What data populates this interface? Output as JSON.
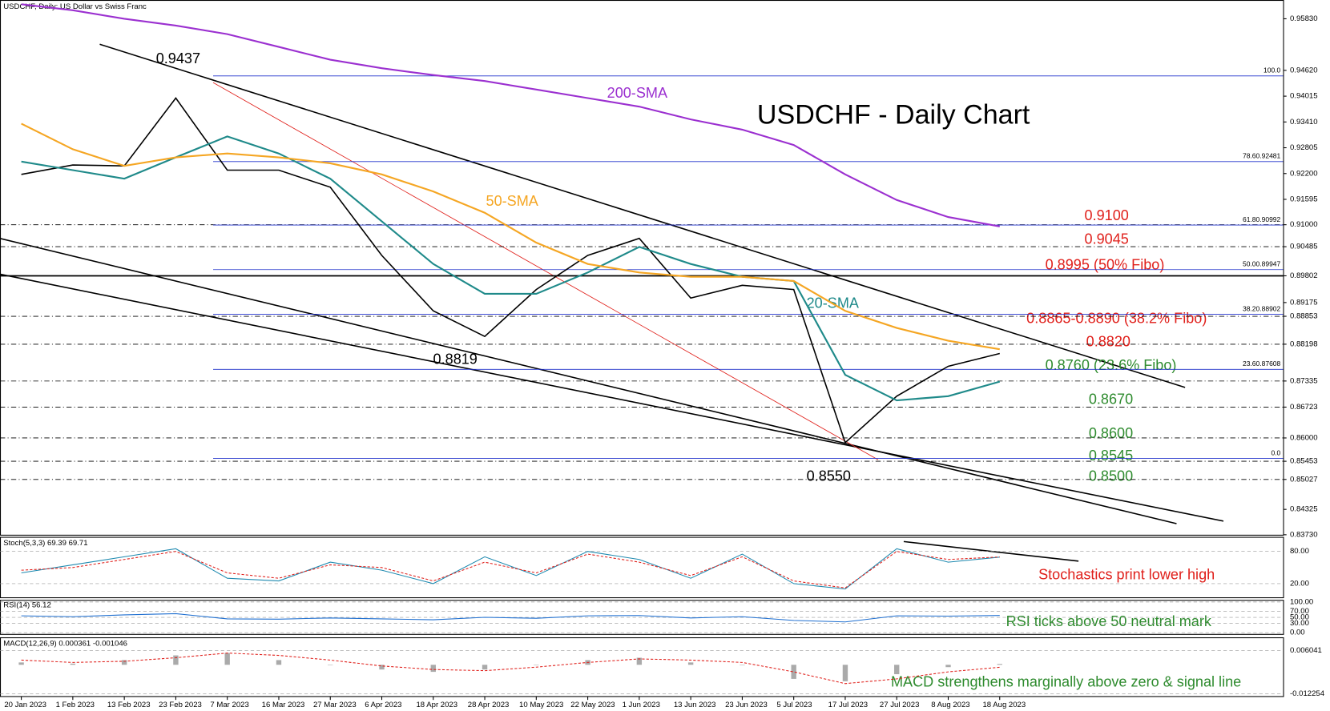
{
  "chart_data": {
    "type": "line",
    "header": "USDCHF, Daily:  US Dollar vs Swiss Franc",
    "title": "USDCHF - Daily Chart",
    "categories": [
      "20 Jan 2023",
      "1 Feb 2023",
      "13 Feb 2023",
      "23 Feb 2023",
      "7 Mar 2023",
      "16 Mar 2023",
      "27 Mar 2023",
      "6 Apr 2023",
      "18 Apr 2023",
      "28 Apr 2023",
      "10 May 2023",
      "22 May 2023",
      "1 Jun 2023",
      "13 Jun 2023",
      "23 Jun 2023",
      "5 Jul 2023",
      "17 Jul 2023",
      "27 Jul 2023",
      "8 Aug 2023",
      "18 Aug 2023"
    ],
    "series": [
      {
        "name": "Close",
        "color": "#000000",
        "values": [
          0.9218,
          0.924,
          0.9238,
          0.9397,
          0.9228,
          0.9228,
          0.9188,
          0.9028,
          0.8898,
          0.8838,
          0.8948,
          0.9028,
          0.9068,
          0.8928,
          0.8958,
          0.8948,
          0.8589,
          0.8698,
          0.8768,
          0.8798
        ]
      },
      {
        "name": "20-SMA",
        "color": "#1f8a8a",
        "values": [
          0.9248,
          0.9228,
          0.9208,
          0.9258,
          0.9307,
          0.9267,
          0.9208,
          0.9108,
          0.9008,
          0.8938,
          0.8938,
          0.8988,
          0.9048,
          0.9008,
          0.8978,
          0.8968,
          0.8748,
          0.8688,
          0.8698,
          0.8732
        ]
      },
      {
        "name": "50-SMA",
        "color": "#f5a623",
        "values": [
          0.9337,
          0.9277,
          0.9238,
          0.9258,
          0.9267,
          0.9258,
          0.9244,
          0.9218,
          0.9178,
          0.9128,
          0.9058,
          0.9008,
          0.8988,
          0.8978,
          0.8978,
          0.8968,
          0.8898,
          0.8858,
          0.8828,
          0.8808
        ]
      },
      {
        "name": "200-SMA",
        "color": "#9b30d0",
        "values": [
          0.9617,
          0.9603,
          0.9583,
          0.9567,
          0.9547,
          0.9517,
          0.9487,
          0.9467,
          0.9451,
          0.9437,
          0.9417,
          0.9397,
          0.9377,
          0.9347,
          0.9323,
          0.9287,
          0.9218,
          0.9158,
          0.9118,
          0.9096
        ]
      }
    ],
    "ylim": [
      0.8373,
      0.9627
    ],
    "yticks": [
      {
        "value": 0.9583,
        "label": "0.95830"
      },
      {
        "value": 0.9462,
        "label": "0.94620"
      },
      {
        "value": 0.94015,
        "label": "0.94015"
      },
      {
        "value": 0.9341,
        "label": "0.93410"
      },
      {
        "value": 0.92805,
        "label": "0.92805"
      },
      {
        "value": 0.922,
        "label": "0.92200"
      },
      {
        "value": 0.91595,
        "label": "0.91595"
      },
      {
        "value": 0.91,
        "label": "0.91000"
      },
      {
        "value": 0.90485,
        "label": "0.90485"
      },
      {
        "value": 0.89802,
        "label": "0.89802"
      },
      {
        "value": 0.89175,
        "label": "0.89175"
      },
      {
        "value": 0.88853,
        "label": "0.88853"
      },
      {
        "value": 0.88198,
        "label": "0.88198"
      },
      {
        "value": 0.87335,
        "label": "0.87335"
      },
      {
        "value": 0.86723,
        "label": "0.86723"
      },
      {
        "value": 0.86,
        "label": "0.86000"
      },
      {
        "value": 0.85453,
        "label": "0.85453"
      },
      {
        "value": 0.85027,
        "label": "0.85027"
      },
      {
        "value": 0.84325,
        "label": "0.84325"
      },
      {
        "value": 0.8373,
        "label": "0.83730"
      }
    ],
    "levels": [
      0.91,
      0.90485,
      0.88853,
      0.88198,
      0.87335,
      0.86723,
      0.86,
      0.85453,
      0.85027
    ],
    "key_level": 0.89802,
    "fibo": [
      {
        "value": 0.9449,
        "label": "100.0"
      },
      {
        "value": 0.92481,
        "label": "78.60.92481"
      },
      {
        "value": 0.90992,
        "label": "61.80.90992"
      },
      {
        "value": 0.89947,
        "label": "50.00.89947"
      },
      {
        "value": 0.88902,
        "label": "38.20.88902"
      },
      {
        "value": 0.87608,
        "label": "23.60.87608"
      },
      {
        "value": 0.8552,
        "label": "0.0"
      }
    ],
    "annotations": [
      "0.9437",
      "0.8819",
      "0.8550",
      "200-SMA",
      "50-SMA",
      "20-SMA"
    ],
    "level_labels": [
      "0.9100",
      "0.9045",
      "0.8995 (50% Fibo)",
      "0.8865-0.8890 (38.2% Fibo)",
      "0.8820",
      "0.8760 (23.6% Fibo)",
      "0.8670",
      "0.8600",
      "0.8545",
      "0.8500"
    ],
    "stoch": {
      "header": "Stoch(5,3,3) 69.39 69.71",
      "ylim": [
        0,
        100
      ],
      "yticks": [
        {
          "value": 80,
          "label": "80.00"
        },
        {
          "value": 20,
          "label": "20.00"
        }
      ],
      "k": [
        40,
        55,
        70,
        85,
        30,
        25,
        60,
        45,
        20,
        70,
        35,
        80,
        65,
        30,
        75,
        20,
        10,
        85,
        60,
        69.39
      ],
      "d": [
        45,
        50,
        65,
        80,
        40,
        30,
        55,
        50,
        25,
        60,
        40,
        75,
        60,
        35,
        70,
        25,
        12,
        80,
        65,
        69.71
      ],
      "note": "Stochastics print lower high"
    },
    "rsi": {
      "header": "RSI(14) 56.12",
      "ylim": [
        0,
        100
      ],
      "yticks": [
        {
          "value": 100,
          "label": "100.00"
        },
        {
          "value": 70,
          "label": "70.00"
        },
        {
          "value": 50,
          "label": "50.00"
        },
        {
          "value": 30,
          "label": "30.00"
        },
        {
          "value": 0,
          "label": "0.00"
        }
      ],
      "values": [
        55,
        52,
        58,
        62,
        45,
        44,
        48,
        45,
        42,
        50,
        47,
        55,
        56,
        48,
        52,
        40,
        35,
        55,
        54,
        56.12
      ],
      "note": "RSI ticks above 50 neutral mark"
    },
    "macd": {
      "header": "MACD(12,26,9) 0.000361 -0.001046",
      "ylim": [
        -0.0135,
        0.0115
      ],
      "yticks": [
        0.006041,
        -0.012254
      ],
      "values": [
        0.001,
        0.0005,
        0.002,
        0.004,
        0.005,
        0.002,
        0,
        -0.002,
        -0.003,
        -0.002,
        0,
        0.002,
        0.003,
        0.001,
        0,
        -0.006,
        -0.007,
        -0.004,
        -0.001,
        0.000361
      ],
      "signal": [
        0.002,
        0.001,
        0.0015,
        0.003,
        0.005,
        0.004,
        0.002,
        -0.0005,
        -0.002,
        -0.0025,
        -0.001,
        0.001,
        0.0025,
        0.002,
        0.001,
        -0.003,
        -0.008,
        -0.006,
        -0.003,
        -0.001046
      ],
      "note": "MACD strengthens marginally above zero & signal line"
    }
  }
}
